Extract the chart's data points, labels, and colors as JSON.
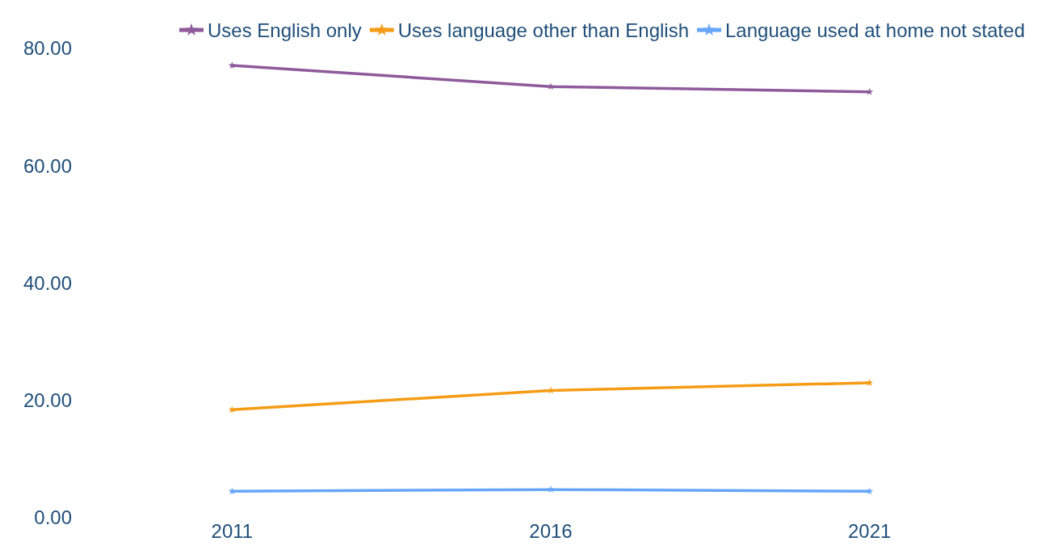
{
  "chart_data": {
    "type": "line",
    "categories": [
      "2011",
      "2016",
      "2021"
    ],
    "series": [
      {
        "name": "Uses English only",
        "color": "#8e5a9b",
        "values": [
          77.1,
          73.5,
          72.6
        ]
      },
      {
        "name": "Uses language other than English",
        "color": "#f59c16",
        "values": [
          18.4,
          21.7,
          23.0
        ]
      },
      {
        "name": "Language used at home not stated",
        "color": "#66a6fa",
        "values": [
          4.5,
          4.8,
          4.5
        ]
      }
    ],
    "ylim": [
      0,
      80
    ],
    "yticks": [
      {
        "value": 0,
        "label": "0.00"
      },
      {
        "value": 20,
        "label": "20.00"
      },
      {
        "value": 40,
        "label": "40.00"
      },
      {
        "value": 60,
        "label": "60.00"
      },
      {
        "value": 80,
        "label": "80.00"
      }
    ],
    "legend": "top",
    "marker": "star",
    "line_style": "solid"
  }
}
